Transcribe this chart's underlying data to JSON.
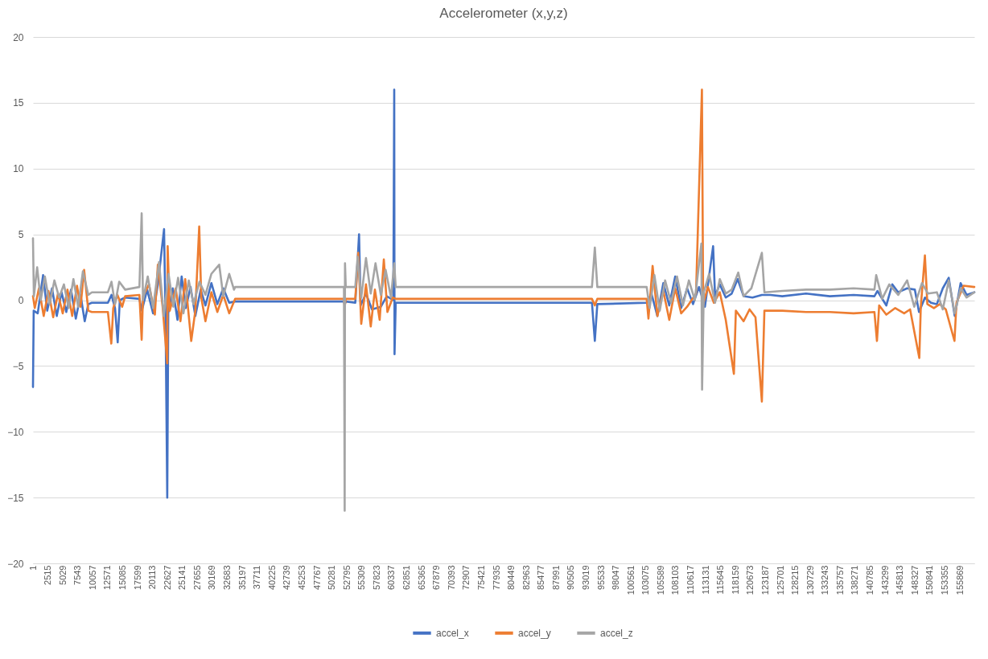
{
  "chart_data": {
    "type": "line",
    "title": "Accelerometer (x,y,z)",
    "xlim": [
      1,
      158300
    ],
    "xticks": [
      1,
      2515,
      5029,
      7543,
      10057,
      12571,
      15085,
      17599,
      20113,
      22627,
      25141,
      27655,
      30169,
      32683,
      35197,
      37711,
      40225,
      42739,
      45253,
      47767,
      50281,
      52795,
      55309,
      57823,
      60337,
      62851,
      65365,
      67879,
      70393,
      72907,
      75421,
      77935,
      80449,
      82963,
      85477,
      87991,
      90505,
      93019,
      95533,
      98047,
      100561,
      103075,
      105589,
      108103,
      110617,
      113131,
      115645,
      118159,
      120673,
      123187,
      125701,
      128215,
      130729,
      133243,
      135757,
      138271,
      140785,
      143299,
      145813,
      148327,
      150841,
      153355,
      155869
    ],
    "ylim": [
      -20,
      20
    ],
    "yticks": [
      -20,
      -15,
      -10,
      -5,
      0,
      5,
      10,
      15,
      20
    ],
    "grid": "y",
    "legend": "bottom",
    "line_style": "solid",
    "marker": "none",
    "series": [
      {
        "name": "accel_x",
        "color": "#4472c4",
        "x": [
          1,
          120,
          800,
          1700,
          2400,
          3200,
          4000,
          4800,
          5600,
          6400,
          7200,
          8000,
          8700,
          9300,
          9900,
          12600,
          13200,
          13800,
          14246,
          14600,
          15500,
          17900,
          18300,
          19200,
          20200,
          21000,
          22042,
          22300,
          22579,
          22750,
          23500,
          24300,
          25000,
          25700,
          26500,
          27300,
          28200,
          29000,
          30000,
          31000,
          32000,
          33000,
          34000,
          52300,
          52416,
          52600,
          54200,
          54835,
          55100,
          56000,
          57000,
          58500,
          59500,
          60600,
          60749,
          60800,
          61000,
          94000,
          94483,
          94900,
          103200,
          104000,
          105000,
          106000,
          107000,
          108000,
          109000,
          110000,
          111000,
          112000,
          113000,
          114374,
          114700,
          115500,
          116500,
          117500,
          118500,
          119500,
          121000,
          122573,
          124000,
          126000,
          130000,
          134000,
          138000,
          141500,
          142000,
          143500,
          144500,
          145500,
          147000,
          148300,
          149000,
          150000,
          151000,
          152000,
          153000,
          154000,
          155000,
          156000,
          157000,
          158300
        ],
        "values": [
          -6.6,
          -0.8,
          -1.0,
          1.9,
          -0.8,
          0.9,
          -1.2,
          0.6,
          -0.9,
          0.8,
          -1.4,
          0.4,
          -1.6,
          -0.3,
          -0.2,
          -0.2,
          0.4,
          -0.6,
          -3.2,
          0.0,
          0.2,
          0.1,
          -0.8,
          0.8,
          -1.0,
          1.2,
          5.4,
          -1.5,
          -15.0,
          -1.0,
          0.9,
          -1.5,
          1.8,
          -0.6,
          1.0,
          -1.2,
          0.8,
          -0.4,
          1.3,
          -0.3,
          0.9,
          -0.2,
          -0.1,
          -0.1,
          -0.3,
          -0.1,
          -0.2,
          5.0,
          -0.4,
          0.5,
          -0.7,
          -0.5,
          0.3,
          0.0,
          16.0,
          -4.1,
          -0.2,
          -0.2,
          -3.1,
          -0.3,
          -0.2,
          0.5,
          -1.2,
          1.3,
          -0.4,
          1.8,
          -0.6,
          0.9,
          -0.3,
          1.0,
          -0.5,
          4.1,
          0.3,
          1.2,
          0.2,
          0.5,
          1.6,
          0.3,
          0.2,
          0.4,
          0.4,
          0.3,
          0.5,
          0.3,
          0.4,
          0.3,
          0.7,
          -0.4,
          1.2,
          0.6,
          0.9,
          0.8,
          -0.9,
          0.2,
          -0.2,
          -0.3,
          0.9,
          1.7,
          -1.2,
          1.3,
          0.4,
          0.6
        ]
      },
      {
        "name": "accel_y",
        "color": "#ed7d31",
        "x": [
          1,
          300,
          1000,
          1800,
          2600,
          3400,
          4200,
          5000,
          5800,
          6600,
          7400,
          8000,
          8600,
          9300,
          9900,
          12600,
          13171,
          13500,
          14200,
          15000,
          15500,
          17900,
          18278,
          18500,
          19500,
          20500,
          21000,
          21800,
          22579,
          22650,
          23000,
          24000,
          24800,
          25600,
          26611,
          27300,
          27955,
          28300,
          29000,
          30000,
          31000,
          32000,
          33000,
          34000,
          52300,
          52416,
          52600,
          54200,
          54700,
          55200,
          56000,
          56800,
          57500,
          58300,
          59000,
          59600,
          60500,
          61000,
          94000,
          94483,
          94900,
          103200,
          103500,
          104200,
          105000,
          106000,
          107000,
          108000,
          109000,
          110000,
          111500,
          112493,
          112700,
          113500,
          114500,
          115500,
          116500,
          117869,
          118200,
          119500,
          120500,
          121500,
          122573,
          123000,
          126000,
          130000,
          134000,
          138000,
          141500,
          141926,
          142300,
          143500,
          145000,
          146500,
          147500,
          149050,
          149300,
          149990,
          150400,
          151500,
          152500,
          153500,
          154963,
          155300,
          156500,
          158300
        ],
        "values": [
          0.3,
          -0.6,
          0.9,
          -1.2,
          0.7,
          -1.3,
          0.5,
          -1.0,
          0.8,
          -1.2,
          1.1,
          -0.5,
          2.3,
          -0.8,
          -0.9,
          -0.9,
          -3.3,
          -0.6,
          0.4,
          -0.5,
          0.3,
          0.4,
          -3.0,
          0.3,
          1.2,
          -1.1,
          2.7,
          -0.5,
          -4.8,
          4.1,
          -0.8,
          0.9,
          -1.6,
          1.6,
          -3.1,
          -0.8,
          5.6,
          0.2,
          -1.6,
          0.6,
          -0.9,
          0.4,
          -1.0,
          0.1,
          0.1,
          -0.5,
          0.1,
          0.1,
          3.6,
          -1.8,
          1.2,
          -2.0,
          0.8,
          -1.5,
          3.1,
          -0.9,
          0.2,
          0.1,
          0.1,
          -0.4,
          0.1,
          0.1,
          -1.4,
          2.6,
          -1.2,
          0.7,
          -1.5,
          0.9,
          -1.0,
          -0.5,
          0.5,
          16.0,
          -0.3,
          1.0,
          -0.2,
          0.6,
          -1.5,
          -5.6,
          -0.8,
          -1.6,
          -0.7,
          -1.3,
          -7.7,
          -0.8,
          -0.8,
          -0.9,
          -0.9,
          -1.0,
          -0.9,
          -3.1,
          -0.4,
          -1.1,
          -0.6,
          -1.0,
          -0.7,
          -4.4,
          -0.5,
          3.4,
          -0.3,
          -0.6,
          -0.3,
          -0.7,
          -3.1,
          -0.2,
          1.1,
          1.0
        ]
      },
      {
        "name": "accel_z",
        "color": "#a5a5a5",
        "x": [
          1,
          150,
          700,
          1300,
          2000,
          2800,
          3600,
          4400,
          5200,
          6000,
          6800,
          7600,
          8400,
          9300,
          9900,
          12600,
          13200,
          13800,
          14500,
          15500,
          17900,
          18278,
          18500,
          19300,
          20200,
          21200,
          22000,
          22800,
          23600,
          24400,
          25300,
          26200,
          27000,
          28000,
          29000,
          30000,
          31315,
          32000,
          33000,
          33800,
          34000,
          52300,
          52416,
          52470,
          52600,
          54200,
          54600,
          55200,
          56000,
          56800,
          57600,
          58500,
          59300,
          60211,
          60749,
          61000,
          94000,
          94483,
          94900,
          103200,
          103700,
          104500,
          105400,
          106300,
          107300,
          108300,
          109300,
          110300,
          111300,
          112400,
          112520,
          112800,
          113700,
          114700,
          115500,
          116500,
          117500,
          118600,
          119500,
          120800,
          122573,
          123000,
          126000,
          130000,
          134000,
          138000,
          141500,
          141800,
          142800,
          144000,
          145500,
          147000,
          148200,
          149500,
          150500,
          152000,
          153000,
          154000,
          155000,
          156000,
          157000,
          158300
        ],
        "values": [
          4.7,
          0.3,
          2.5,
          0.0,
          1.8,
          -0.3,
          1.5,
          0.2,
          1.2,
          -0.6,
          1.6,
          -0.5,
          2.2,
          0.4,
          0.6,
          0.6,
          1.4,
          -0.3,
          1.4,
          0.8,
          1.0,
          6.6,
          0.0,
          1.8,
          -0.6,
          2.9,
          -1.2,
          2.0,
          -0.5,
          1.7,
          -1.0,
          1.5,
          -0.3,
          1.4,
          0.4,
          2.0,
          2.7,
          0.3,
          2.0,
          0.8,
          1.0,
          1.0,
          -16.0,
          2.8,
          1.0,
          1.0,
          3.3,
          0.2,
          3.2,
          0.5,
          2.8,
          0.4,
          2.3,
          0.2,
          2.8,
          1.0,
          1.0,
          4.0,
          1.0,
          1.0,
          -0.6,
          1.9,
          -0.8,
          1.5,
          -0.2,
          1.8,
          -0.4,
          1.5,
          0.0,
          4.3,
          -6.8,
          0.6,
          2.0,
          -0.2,
          1.6,
          0.5,
          0.8,
          2.1,
          0.3,
          0.9,
          3.6,
          0.6,
          0.7,
          0.8,
          0.8,
          0.9,
          0.8,
          1.9,
          0.1,
          1.2,
          0.4,
          1.5,
          -0.5,
          1.3,
          0.5,
          0.6,
          -0.7,
          1.5,
          -1.0,
          0.9,
          0.2,
          0.6
        ]
      }
    ]
  }
}
